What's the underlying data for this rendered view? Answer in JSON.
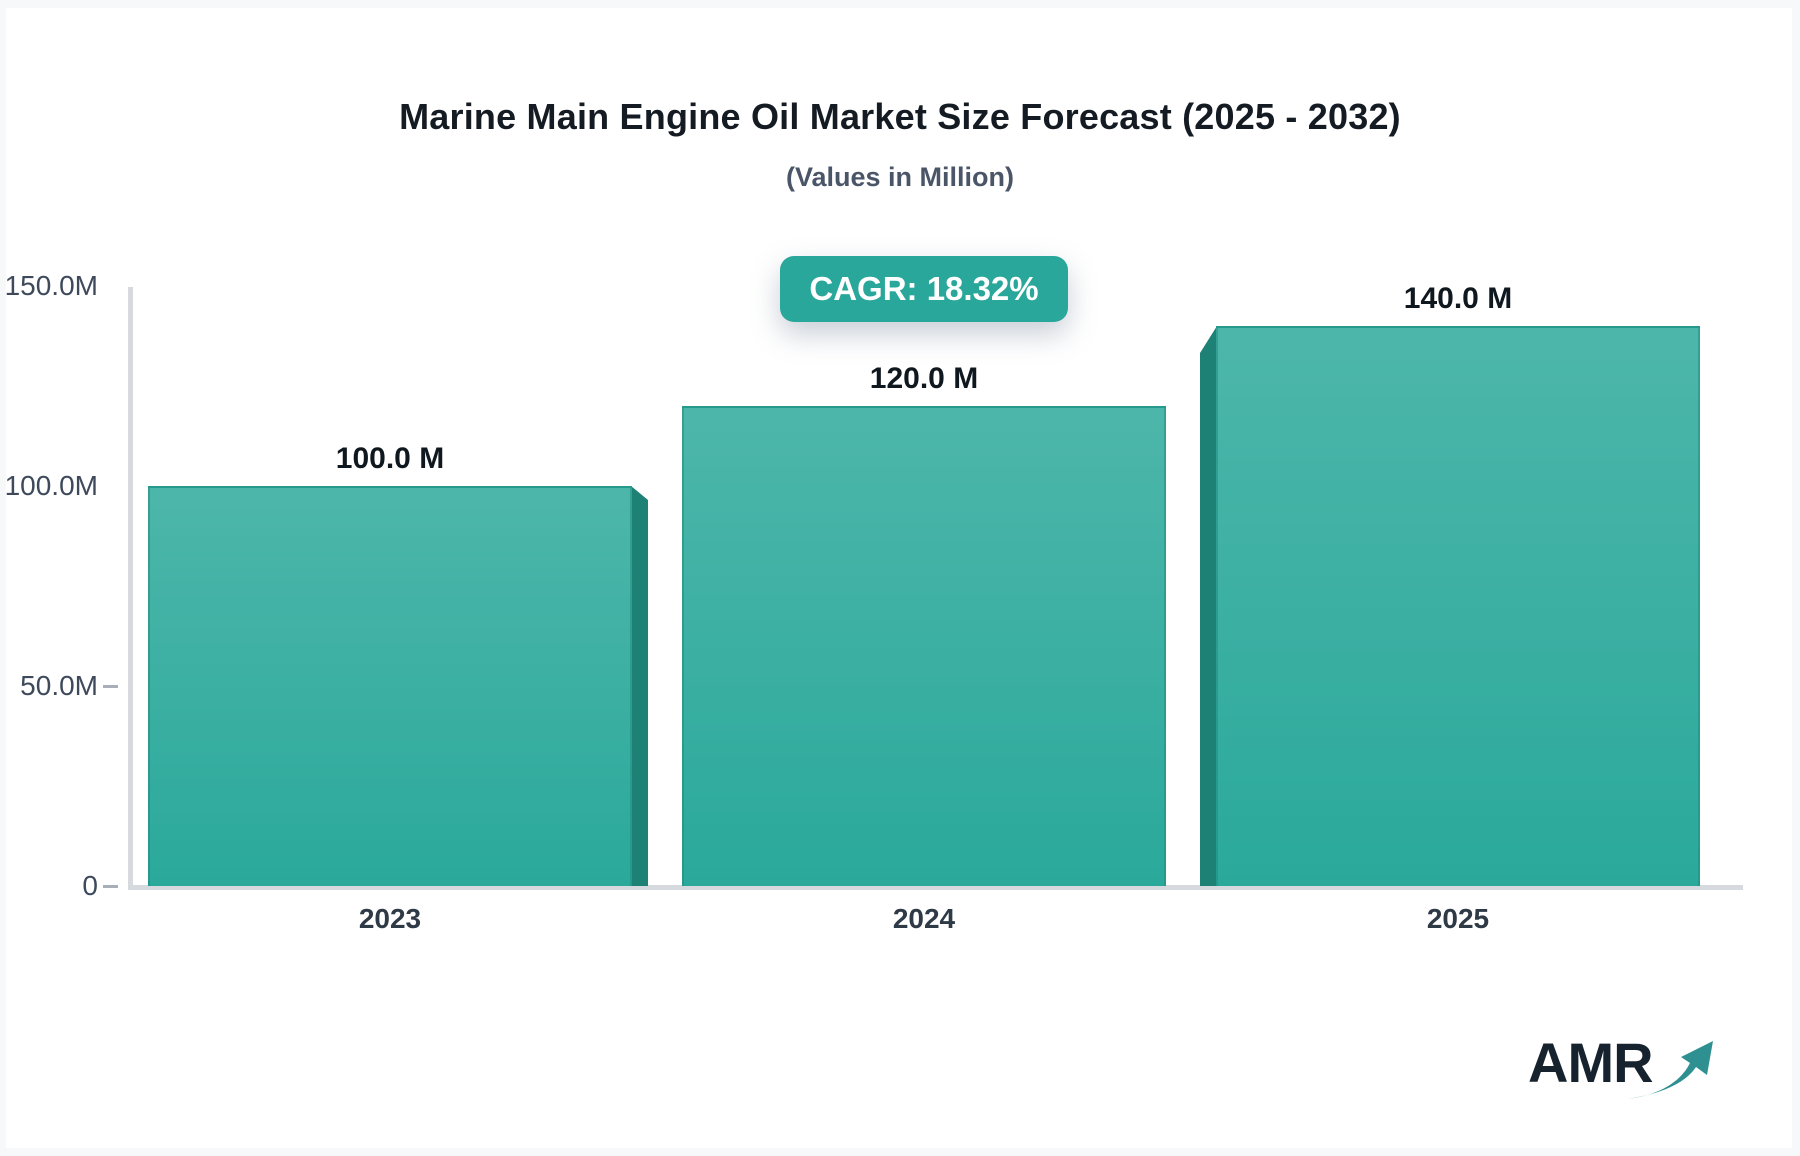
{
  "title": "Marine Main Engine Oil Market Size Forecast (2025 - 2032)",
  "subtitle": "(Values in Million)",
  "cagr_badge": "CAGR: 18.32%",
  "logo_text": "AMR",
  "colors": {
    "badge_bg": "#2aa79b",
    "bar_gradient_top": "#4db6aa",
    "bar_gradient_bottom": "#2aa99b",
    "bar_side_shadow": "#1e8176",
    "axis_line": "#d6d9dd",
    "axis_text": "#3e4a5c",
    "title_text": "#151b23",
    "subtitle_text": "#4a5568"
  },
  "chart_data": {
    "type": "bar",
    "title": "Marine Main Engine Oil Market Size Forecast (2025 - 2032)",
    "subtitle": "(Values in Million)",
    "unit": "Million",
    "categories": [
      "2023",
      "2024",
      "2025"
    ],
    "values": [
      100.0,
      120.0,
      140.0
    ],
    "value_labels": [
      "100.0 M",
      "120.0 M",
      "140.0 M"
    ],
    "cagr_annotation": "CAGR: 18.32%",
    "ylim": [
      0,
      150
    ],
    "yticks": [
      {
        "label": "150.0M",
        "value": 150,
        "dash": false
      },
      {
        "label": "100.0M",
        "value": 100,
        "dash": false
      },
      {
        "label": "50.0M",
        "value": 50,
        "dash": true
      },
      {
        "label": "0",
        "value": 0,
        "dash": true
      }
    ],
    "grid": false,
    "legend": "none",
    "bar_style": "3d-teal-gradient"
  }
}
